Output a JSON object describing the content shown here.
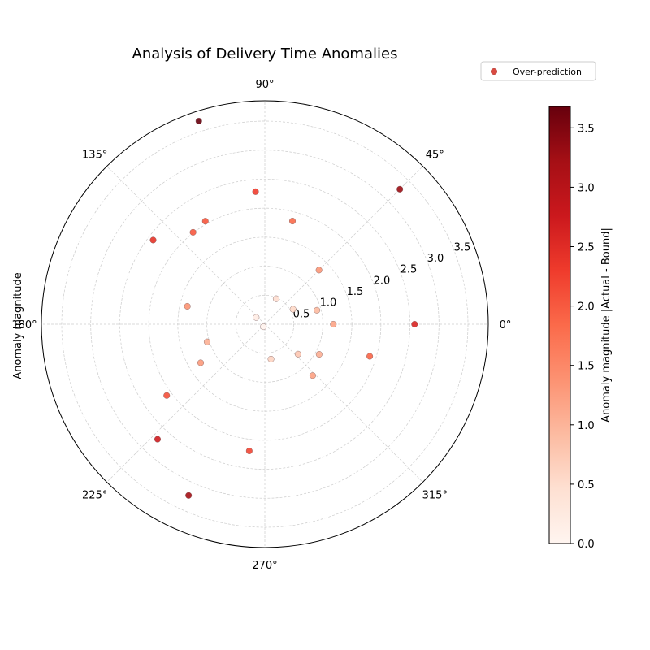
{
  "chart_data": {
    "type": "scatter",
    "subtype": "polar",
    "title": "Analysis of Delivery Time Anomalies",
    "radial_label": "Anomaly magnitude",
    "angle_ticks": [
      "0°",
      "45°",
      "90°",
      "135°",
      "180°",
      "225°",
      "270°",
      "315°"
    ],
    "radial_ticks": [
      "0.5",
      "1.0",
      "1.5",
      "2.0",
      "2.5",
      "3.0",
      "3.5"
    ],
    "radial_range": [
      0,
      3.85
    ],
    "legend": {
      "entries": [
        "Over-prediction"
      ],
      "placement": "top-right"
    },
    "colorbar": {
      "label": "Anomaly magnitude |Actual - Bound|",
      "range": [
        0,
        3.68
      ],
      "ticks": [
        "0.0",
        "0.5",
        "1.0",
        "1.5",
        "2.0",
        "2.5",
        "3.0",
        "3.5"
      ],
      "colormap": "Reds"
    },
    "grid": true,
    "points": [
      {
        "theta": 142,
        "r": 0.19,
        "c": 0.19
      },
      {
        "theta": 240,
        "r": 0.05,
        "c": 0.05
      },
      {
        "theta": 66,
        "r": 0.48,
        "c": 0.48
      },
      {
        "theta": 28,
        "r": 0.55,
        "c": 0.55
      },
      {
        "theta": 15,
        "r": 0.93,
        "c": 0.93
      },
      {
        "theta": 0,
        "r": 1.18,
        "c": 1.18
      },
      {
        "theta": 280,
        "r": 0.61,
        "c": 0.61
      },
      {
        "theta": 318,
        "r": 0.77,
        "c": 0.77
      },
      {
        "theta": 331,
        "r": 1.07,
        "c": 1.07
      },
      {
        "theta": 343,
        "r": 1.89,
        "c": 1.89
      },
      {
        "theta": 313,
        "r": 1.21,
        "c": 1.21
      },
      {
        "theta": 45,
        "r": 1.32,
        "c": 1.32
      },
      {
        "theta": 75,
        "r": 1.84,
        "c": 1.84
      },
      {
        "theta": 94,
        "r": 2.29,
        "c": 2.29
      },
      {
        "theta": 120,
        "r": 2.05,
        "c": 2.05
      },
      {
        "theta": 128,
        "r": 2.01,
        "c": 2.01
      },
      {
        "theta": 143,
        "r": 2.41,
        "c": 2.41
      },
      {
        "theta": 167,
        "r": 1.37,
        "c": 1.37
      },
      {
        "theta": 197,
        "r": 1.04,
        "c": 1.04
      },
      {
        "theta": 211,
        "r": 1.29,
        "c": 1.29
      },
      {
        "theta": 216,
        "r": 2.09,
        "c": 2.09
      },
      {
        "theta": 227,
        "r": 2.71,
        "c": 2.71
      },
      {
        "theta": 246,
        "r": 3.23,
        "c": 3.23
      },
      {
        "theta": 263,
        "r": 2.2,
        "c": 2.2
      },
      {
        "theta": 45,
        "r": 3.29,
        "c": 3.29
      },
      {
        "theta": 0,
        "r": 2.58,
        "c": 2.58
      },
      {
        "theta": 108,
        "r": 3.68,
        "c": 3.68
      }
    ]
  }
}
